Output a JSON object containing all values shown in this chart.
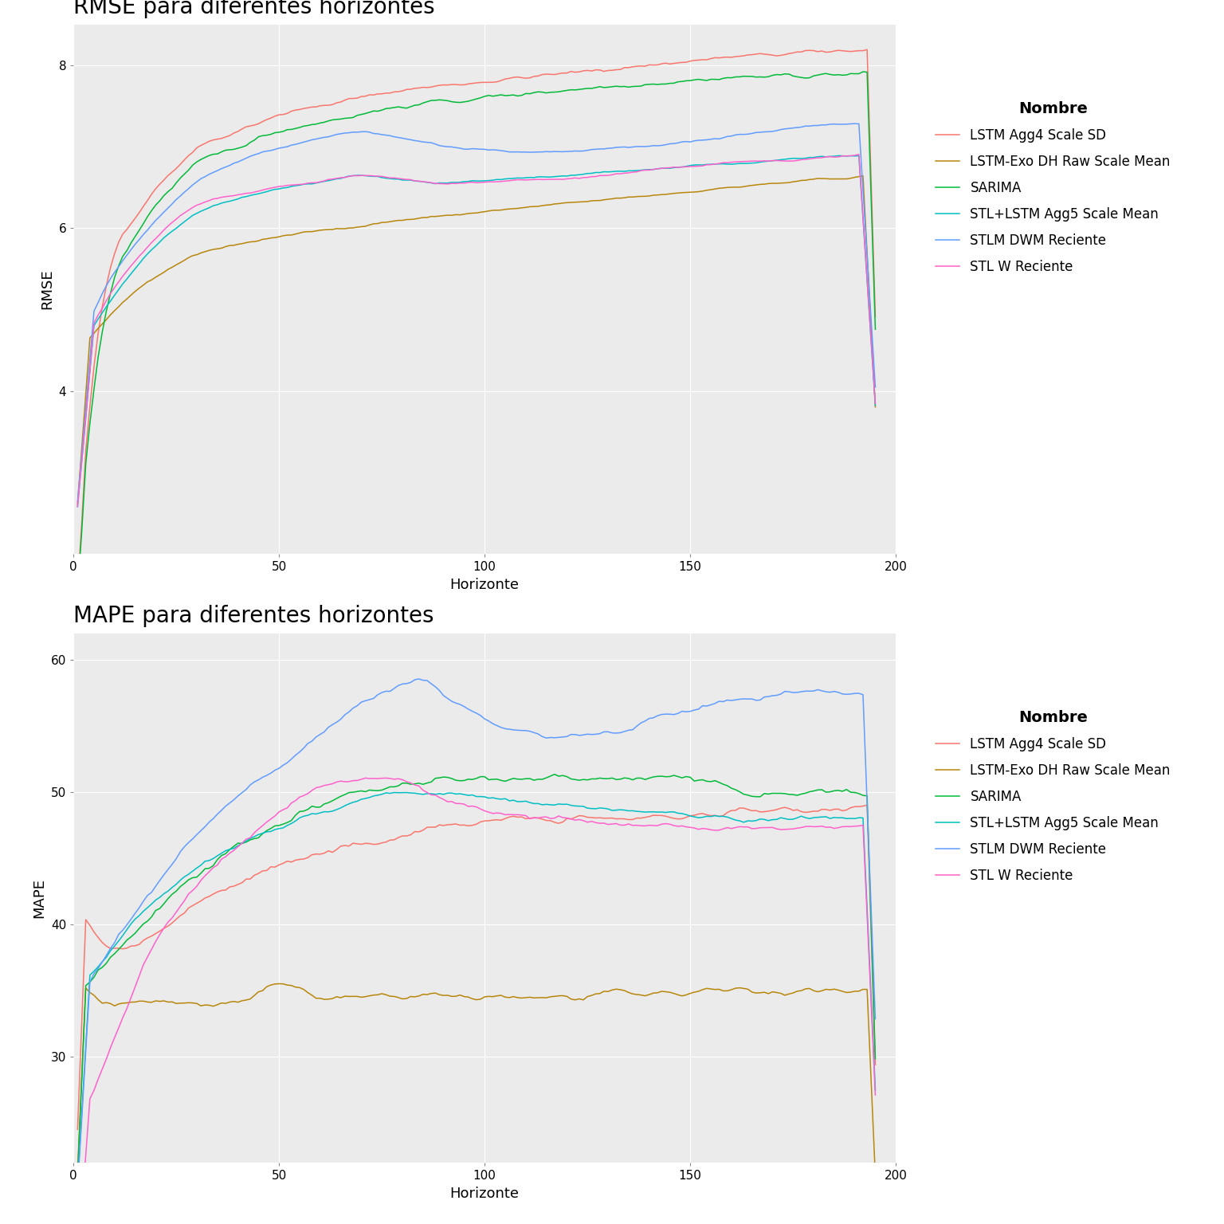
{
  "title1": "RMSE para diferentes horizontes",
  "title2": "MAPE para diferentes horizontes",
  "xlabel": "Horizonte",
  "ylabel1": "RMSE",
  "ylabel2": "MAPE",
  "legend_title": "Nombre",
  "series_names": [
    "LSTM Agg4 Scale SD",
    "LSTM-Exo DH Raw Scale Mean",
    "SARIMA",
    "STL+LSTM Agg5 Scale Mean",
    "STLM DWM Reciente",
    "STL W Reciente"
  ],
  "colors": [
    "#F8766D",
    "#B8860B",
    "#00BA38",
    "#00BFC4",
    "#619CFF",
    "#FF61CC"
  ],
  "rmse_ylim": [
    2.0,
    8.5
  ],
  "rmse_yticks": [
    4,
    6,
    8
  ],
  "mape_ylim": [
    22,
    62
  ],
  "mape_yticks": [
    30,
    40,
    50,
    60
  ],
  "xlim": [
    0,
    200
  ],
  "xticks": [
    0,
    50,
    100,
    150,
    200
  ],
  "background_color": "#EBEBEB",
  "grid_color": "#FFFFFF",
  "title_fontsize": 20,
  "axis_label_fontsize": 13,
  "tick_fontsize": 11,
  "legend_fontsize": 12,
  "legend_title_fontsize": 14
}
